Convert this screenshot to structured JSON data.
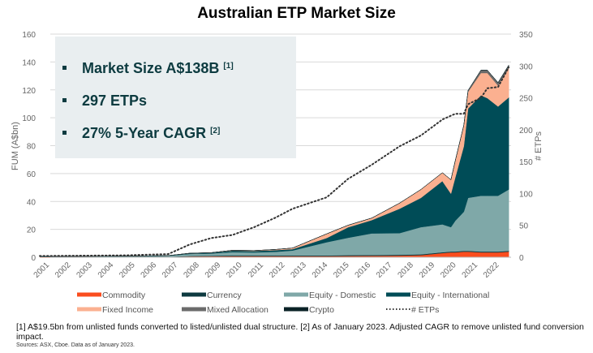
{
  "chart_data": {
    "type": "area",
    "title": "Australian ETP Market Size",
    "ylabel": "FUM (A$bn)",
    "y2label": "# ETPs",
    "ylim": [
      0,
      160
    ],
    "y2lim": [
      0,
      350
    ],
    "yticks": [
      "0",
      "20",
      "40",
      "60",
      "80",
      "100",
      "120",
      "140",
      "160"
    ],
    "y2ticks": [
      "0",
      "50",
      "100",
      "150",
      "200",
      "250",
      "300",
      "350"
    ],
    "xticks": [
      "2001",
      "2002",
      "2003",
      "2004",
      "2005",
      "2006",
      "2007",
      "2008",
      "2009",
      "2010",
      "2011",
      "2012",
      "2013",
      "2014",
      "2015",
      "2016",
      "2017",
      "2018",
      "2019",
      "2020",
      "2021",
      "2022"
    ],
    "grid": true,
    "legend_position": "bottom",
    "x": [
      2001,
      2005,
      2007,
      2008,
      2009,
      2010,
      2011,
      2012,
      2012.8,
      2014.4,
      2015.4,
      2016.5,
      2017.8,
      2018.8,
      2019.8,
      2020.2,
      2020.4,
      2020.8,
      2021.0,
      2021.6,
      2021.9,
      2022.4,
      2022.9
    ],
    "series": [
      {
        "name": "Commodity",
        "color": "#fa4d1e",
        "stacked": true,
        "values": [
          0.2,
          0.3,
          0.4,
          0.6,
          0.7,
          0.8,
          0.8,
          0.8,
          0.8,
          0.8,
          0.9,
          1.0,
          1.2,
          1.5,
          3,
          3.5,
          3.5,
          4,
          4,
          3.5,
          3.5,
          3.5,
          4
        ]
      },
      {
        "name": "Currency",
        "color": "#0e3a40",
        "stacked": true,
        "values": [
          0,
          0,
          0,
          0.3,
          0.4,
          0.5,
          0.5,
          0.5,
          0.5,
          0.5,
          0.6,
          0.6,
          0.6,
          0.6,
          0.6,
          0.6,
          0.6,
          0.6,
          0.6,
          0.6,
          0.6,
          0.6,
          0.6
        ]
      },
      {
        "name": "Equity - Domestic",
        "color": "#7fa8a8",
        "stacked": true,
        "values": [
          0.3,
          0.4,
          0.6,
          1.5,
          1.6,
          2.4,
          2.2,
          2.6,
          3.5,
          9.5,
          12.5,
          15.5,
          15.5,
          19.5,
          20,
          17.5,
          22,
          28,
          38,
          40,
          40,
          40,
          44
        ]
      },
      {
        "name": "Equity - International",
        "color": "#004c57",
        "stacked": true,
        "values": [
          0,
          0.1,
          0.2,
          0.4,
          0.5,
          1,
          1,
          1.2,
          1,
          3,
          7.5,
          9.5,
          17.5,
          21,
          31,
          24,
          31,
          47,
          64,
          72,
          70,
          64,
          66
        ]
      },
      {
        "name": "Fixed Income",
        "color": "#fbb090",
        "stacked": true,
        "values": [
          0,
          0,
          0,
          0.1,
          0.1,
          0.3,
          0.3,
          0.5,
          0.8,
          3,
          1.5,
          1.5,
          4,
          6,
          6,
          10,
          12,
          15,
          12,
          16,
          18,
          15,
          21
        ]
      },
      {
        "name": "Mixed Allocation",
        "color": "#6b6b6b",
        "stacked": true,
        "values": [
          0,
          0,
          0,
          0,
          0,
          0,
          0,
          0,
          0,
          0,
          0,
          0,
          0,
          0,
          0,
          0,
          0,
          0,
          1,
          2,
          2,
          2,
          2
        ]
      },
      {
        "name": "Crypto",
        "color": "#0a2226",
        "stacked": true,
        "values": [
          0,
          0,
          0,
          0,
          0,
          0,
          0,
          0,
          0,
          0,
          0,
          0,
          0,
          0,
          0,
          0,
          0,
          0,
          0,
          0,
          0,
          0.2,
          0.2
        ]
      },
      {
        "name": "# ETPs",
        "color": "#333333",
        "axis": "right",
        "style": "dotted",
        "values": [
          2,
          3,
          5,
          20,
          30,
          35,
          47,
          62,
          76,
          94,
          123,
          145,
          174,
          191,
          216,
          222,
          225,
          225,
          240,
          250,
          265,
          267,
          298
        ]
      }
    ],
    "callouts": [
      {
        "text": "Market Size A$138B",
        "sup": "[1]"
      },
      {
        "text": "297 ETPs",
        "sup": ""
      },
      {
        "text": "27% 5-Year CAGR",
        "sup": "[2]"
      }
    ],
    "callout_bg": "#e9eef0"
  },
  "footnote": "[1] A$19.5bn from unlisted funds converted to listed/unlisted dual structure. [2] As of January 2023. Adjusted CAGR to remove unlisted fund conversion impact.",
  "sources": "Sources: ASX, Cboe. Data as of January 2023."
}
